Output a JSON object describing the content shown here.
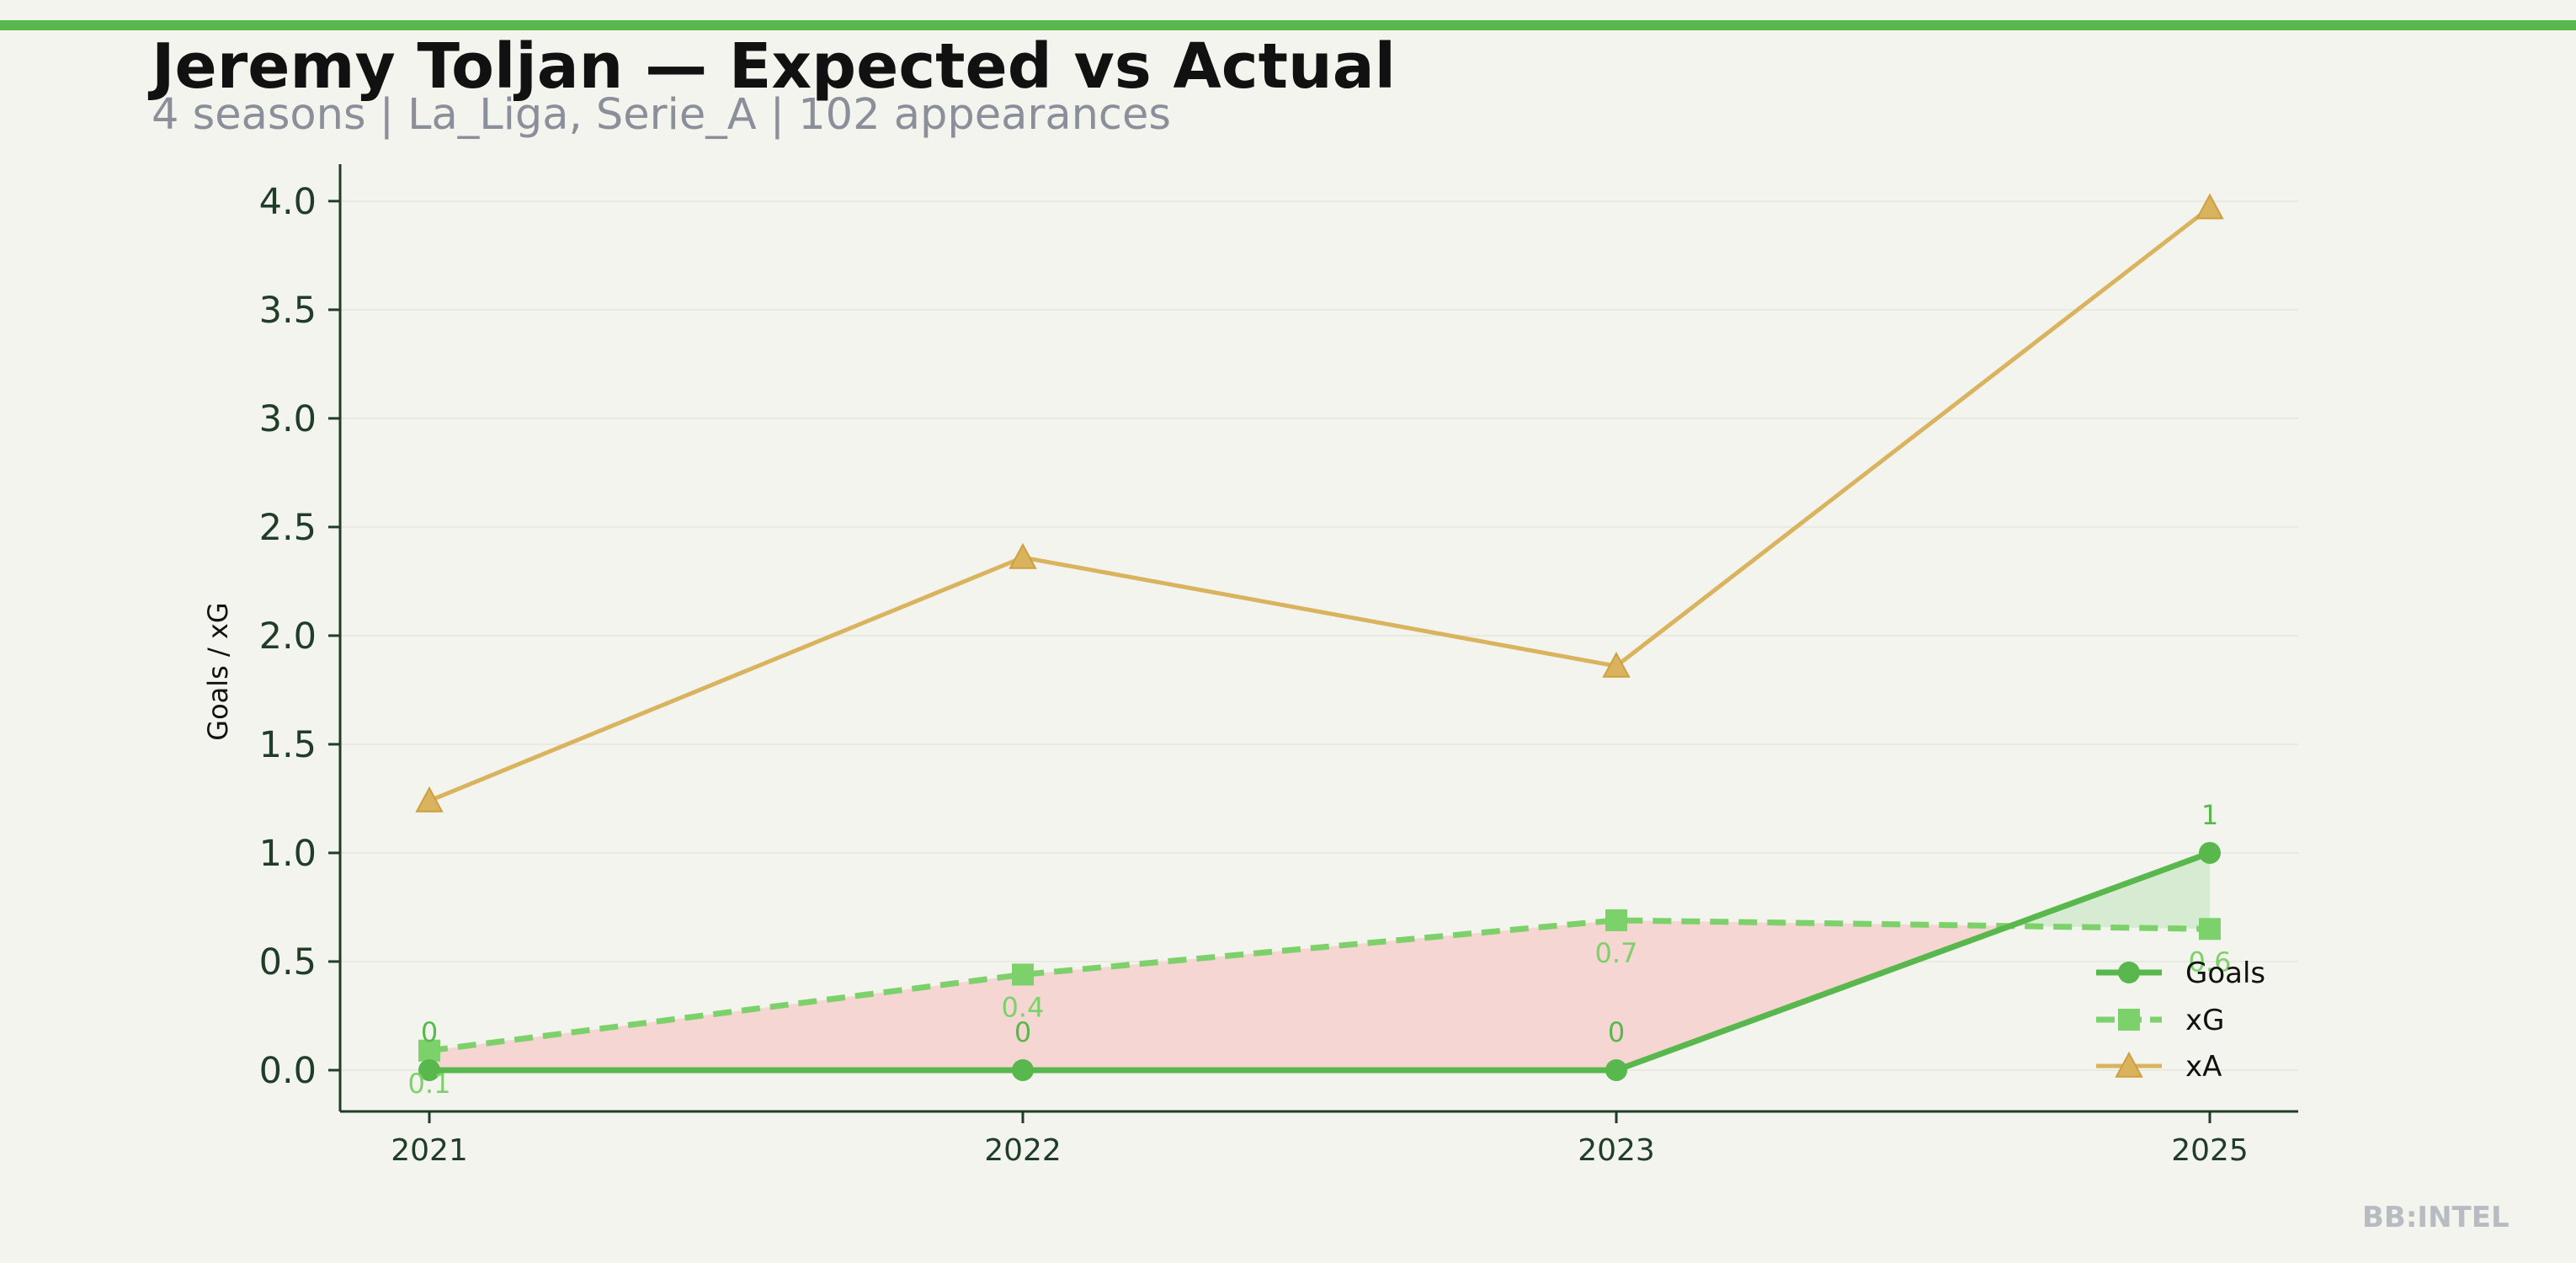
{
  "header": {
    "title": "Jeremy Toljan — Expected vs Actual",
    "subtitle": "4 seasons | La_Liga, Serie_A | 102 appearances"
  },
  "brand": {
    "watermark": "BB:INTEL"
  },
  "colors": {
    "accent": "#58b84e",
    "goals": "#58b84e",
    "xg": "#7dd16a",
    "xa": "#d9b35e",
    "under_fill": "#f5d6d2",
    "over_fill": "#d7ebd2",
    "axis": "#1f3d27",
    "background": "#f4f4ee"
  },
  "chart_data": {
    "type": "line",
    "x": [
      "2021",
      "2022",
      "2023",
      "2025"
    ],
    "ylabel": "Goals / xG",
    "xlabel": "",
    "ylim": [
      -0.19,
      4.17
    ],
    "yticks": [
      0.0,
      0.5,
      1.0,
      1.5,
      2.0,
      2.5,
      3.0,
      3.5,
      4.0
    ],
    "grid": true,
    "legend": "lower-right",
    "series": [
      {
        "name": "Goals",
        "values": [
          0,
          0,
          0,
          1
        ],
        "labels": [
          "0",
          "0",
          "0",
          "1"
        ],
        "style": "solid",
        "marker": "circle"
      },
      {
        "name": "xG",
        "values": [
          0.09,
          0.44,
          0.69,
          0.65
        ],
        "labels": [
          "0.1",
          "0.4",
          "0.7",
          "0.6"
        ],
        "style": "dashed",
        "marker": "square"
      },
      {
        "name": "xA",
        "values": [
          1.24,
          2.36,
          1.86,
          3.97
        ],
        "style": "solid",
        "marker": "triangle"
      }
    ]
  }
}
